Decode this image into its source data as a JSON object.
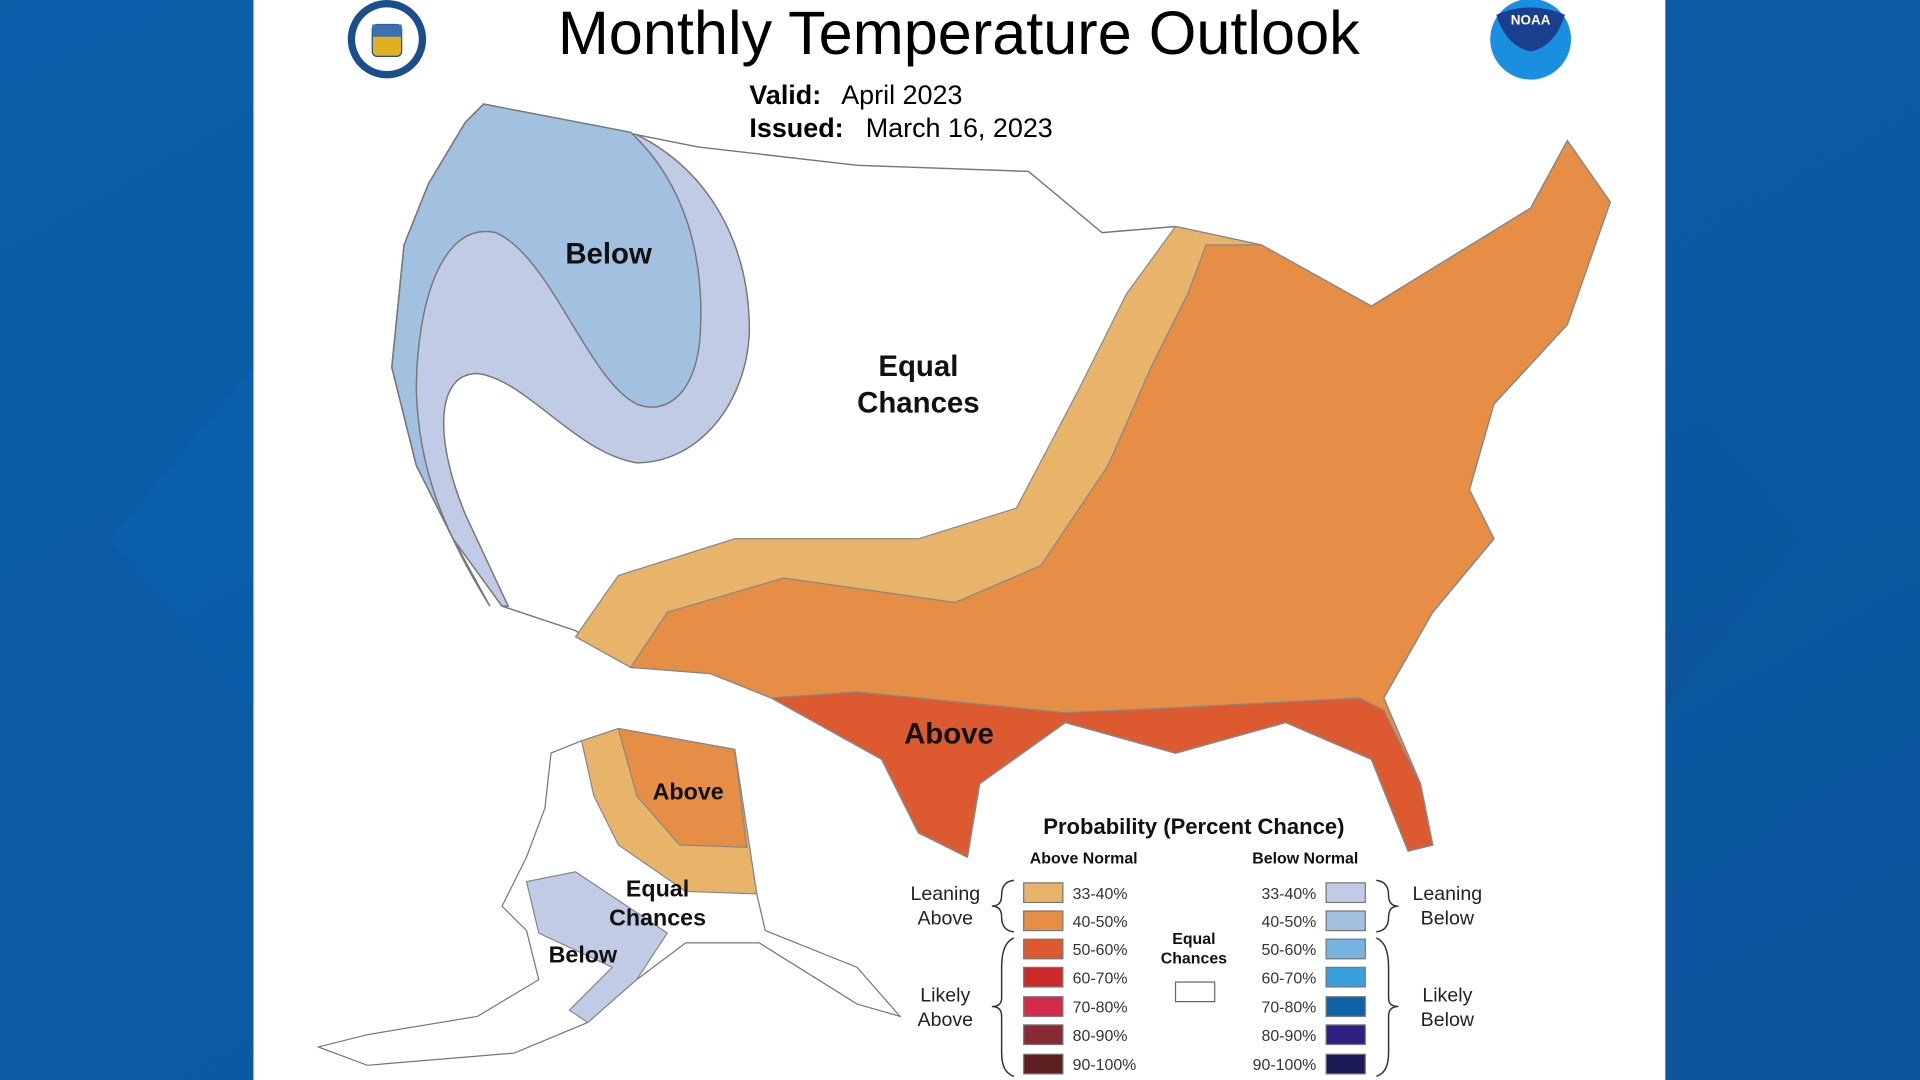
{
  "header": {
    "title": "Monthly Temperature Outlook",
    "valid_label": "Valid:",
    "valid_value": "April 2023",
    "issued_label": "Issued:",
    "issued_value": "March 16, 2023",
    "logos": {
      "left": "US Department of Commerce seal",
      "right": "NOAA",
      "right_text": "NOAA"
    }
  },
  "map_labels": {
    "conus_below": "Below",
    "conus_equal_1": "Equal",
    "conus_equal_2": "Chances",
    "conus_above": "Above",
    "ak_above": "Above",
    "ak_equal_1": "Equal",
    "ak_equal_2": "Chances",
    "ak_below": "Below"
  },
  "legend": {
    "title": "Probability (Percent Chance)",
    "above_header": "Above Normal",
    "below_header": "Below Normal",
    "leaning_above": [
      "Leaning",
      "Above"
    ],
    "likely_above": [
      "Likely",
      "Above"
    ],
    "leaning_below": [
      "Leaning",
      "Below"
    ],
    "likely_below": [
      "Likely",
      "Below"
    ],
    "equal": [
      "Equal",
      "Chances"
    ],
    "equal_color": "#ffffff",
    "above": [
      {
        "range": "33-40%",
        "color": "#e8b46a"
      },
      {
        "range": "40-50%",
        "color": "#e68d46"
      },
      {
        "range": "50-60%",
        "color": "#dd5a30"
      },
      {
        "range": "60-70%",
        "color": "#cc2a28"
      },
      {
        "range": "70-80%",
        "color": "#d52b4a"
      },
      {
        "range": "80-90%",
        "color": "#8a2a34"
      },
      {
        "range": "90-100%",
        "color": "#5e1e22"
      }
    ],
    "below": [
      {
        "range": "33-40%",
        "color": "#c0cbe6"
      },
      {
        "range": "40-50%",
        "color": "#a2c0e0"
      },
      {
        "range": "50-60%",
        "color": "#78b4e2"
      },
      {
        "range": "60-70%",
        "color": "#3aa0dc"
      },
      {
        "range": "70-80%",
        "color": "#0e62a8"
      },
      {
        "range": "80-90%",
        "color": "#2e2080"
      },
      {
        "range": "90-100%",
        "color": "#1c1a56"
      }
    ]
  }
}
